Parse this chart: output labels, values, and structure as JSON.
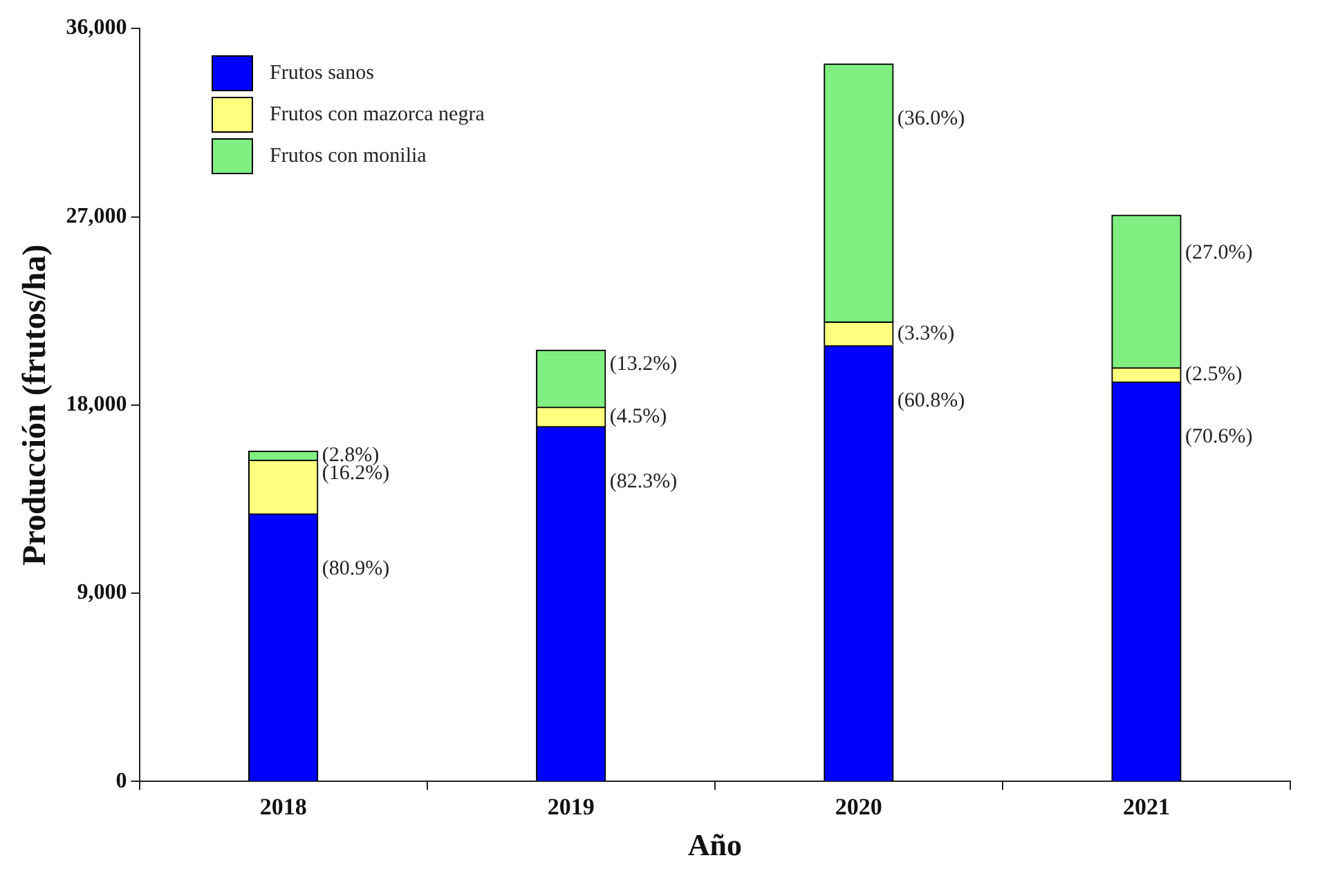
{
  "chart_data": {
    "type": "bar",
    "stacked": true,
    "xlabel": "Año",
    "ylabel": "Producción (frutos/ha)",
    "categories": [
      "2018",
      "2019",
      "2020",
      "2021"
    ],
    "series": [
      {
        "name": "Frutos sanos",
        "color": "#0000ff",
        "values": [
          12800,
          16970,
          20840,
          19100
        ]
      },
      {
        "name": "Frutos con mazorca negra",
        "color": "#ffff80",
        "values": [
          2560,
          930,
          1130,
          680
        ]
      },
      {
        "name": "Frutos con monilia",
        "color": "#80ee80",
        "values": [
          440,
          2720,
          12340,
          7300
        ]
      }
    ],
    "annotations": [
      {
        "text": "(80.9%)",
        "x": "2018",
        "y": 12800
      },
      {
        "text": "(16.2%)",
        "x": "2018",
        "y": 15360
      },
      {
        "text": "(2.8%)",
        "x": "2018",
        "y": 15800
      },
      {
        "text": "(82.3%)",
        "x": "2019",
        "y": 16970
      },
      {
        "text": "(4.5%)",
        "x": "2019",
        "y": 17900
      },
      {
        "text": "(13.2%)",
        "x": "2019",
        "y": 20620
      },
      {
        "text": "(60.8%)",
        "x": "2020",
        "y": 20840
      },
      {
        "text": "(3.3%)",
        "x": "2020",
        "y": 21970
      },
      {
        "text": "(36.0%)",
        "x": "2020",
        "y": 34310
      },
      {
        "text": "(70.6%)",
        "x": "2021",
        "y": 19100
      },
      {
        "text": "(2.5%)",
        "x": "2021",
        "y": 19780
      },
      {
        "text": "(27.0%)",
        "x": "2021",
        "y": 27080
      }
    ],
    "ylim": [
      0,
      36000
    ],
    "yticks": [
      {
        "value": 0,
        "label": "0"
      },
      {
        "value": 9000,
        "label": "9,000"
      },
      {
        "value": 18000,
        "label": "18,000"
      },
      {
        "value": 27000,
        "label": "27,000"
      },
      {
        "value": 36000,
        "label": "36,000"
      }
    ],
    "grid": false,
    "legend": "top left"
  }
}
